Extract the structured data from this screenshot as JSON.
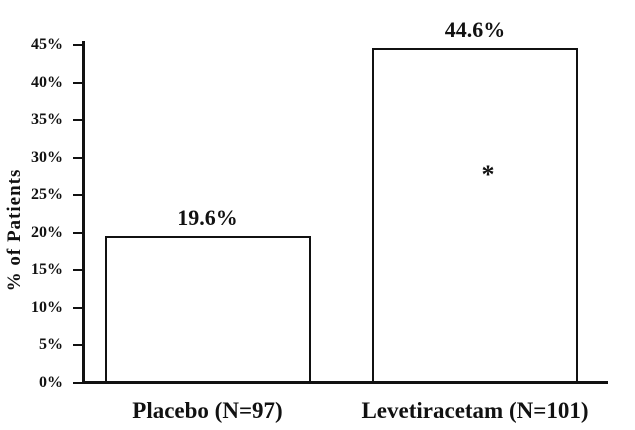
{
  "chart_data": {
    "type": "bar",
    "ylabel": "% of Patients",
    "categories": [
      "Placebo (N=97)",
      "Levetiracetam (N=101)"
    ],
    "values": [
      19.6,
      44.6
    ],
    "value_labels": [
      "19.6%",
      "44.6%"
    ],
    "ylim": [
      0,
      45
    ],
    "ytick_step": 5,
    "ytick_labels": [
      "0%",
      "5%",
      "10%",
      "15%",
      "20%",
      "25%",
      "30%",
      "35%",
      "40%",
      "45%"
    ],
    "annotation": {
      "text": "*",
      "category_index": 1,
      "y_value": 28
    },
    "bar_fill": "#ffffff",
    "bar_border_color": "#111111",
    "axis_color": "#111111",
    "text_color": "#111111",
    "background_color": "#ffffff",
    "grid": false,
    "legend": false
  }
}
